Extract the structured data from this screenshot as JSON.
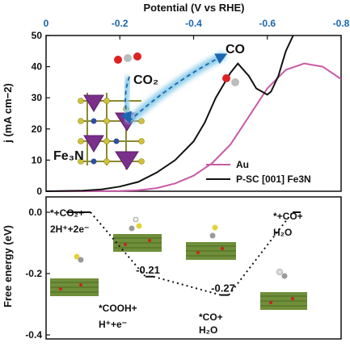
{
  "chart_data": [
    {
      "type": "line",
      "xlabel": "Potential (V vs RHE)",
      "ylabel": "j (mA cm−2)",
      "xlim": [
        0,
        -0.8
      ],
      "ylim": [
        0,
        50
      ],
      "x_ticks": [
        "0",
        "-0.2",
        "-0.4",
        "-0.6",
        "-0.8"
      ],
      "y_ticks": [
        "0",
        "10",
        "20",
        "30",
        "40",
        "50"
      ],
      "x_tick_values": [
        0,
        -0.2,
        -0.4,
        -0.6,
        -0.8
      ],
      "y_tick_values": [
        0,
        10,
        20,
        30,
        40,
        50
      ],
      "legend_position": "bottom-right",
      "series": [
        {
          "name": "Au",
          "color": "#c85aa6",
          "x": [
            0,
            -0.1,
            -0.2,
            -0.25,
            -0.3,
            -0.35,
            -0.4,
            -0.45,
            -0.5,
            -0.55,
            -0.6,
            -0.65,
            -0.7,
            -0.75,
            -0.8
          ],
          "y": [
            0,
            0,
            0.1,
            0.3,
            1,
            2.5,
            5,
            9,
            15,
            24,
            33,
            39,
            41,
            40,
            36
          ]
        },
        {
          "name": "P-SC [001] Fe3N",
          "color": "#111111",
          "x": [
            0,
            -0.1,
            -0.15,
            -0.2,
            -0.25,
            -0.3,
            -0.35,
            -0.4,
            -0.43,
            -0.46,
            -0.5,
            -0.52,
            -0.55,
            -0.57,
            -0.6,
            -0.61,
            -0.63,
            -0.65,
            -0.67
          ],
          "y": [
            0,
            0.2,
            0.6,
            1.5,
            3,
            6,
            10,
            16,
            22,
            30,
            38,
            41,
            37,
            33,
            31,
            32,
            37,
            45,
            52
          ]
        }
      ],
      "annotations": {
        "co2": "CO₂",
        "co": "CO",
        "material": "Fe₃N"
      }
    },
    {
      "type": "line",
      "xlabel": "",
      "ylabel": "Free energy (eV)",
      "ylim": [
        -0.4,
        0.05
      ],
      "y_ticks": [
        "0.0",
        "-0.2",
        "-0.4"
      ],
      "y_tick_values": [
        0,
        -0.2,
        -0.4
      ],
      "states": [
        {
          "label_lines": [
            "*+CO₂+",
            "2H⁺+2e⁻"
          ],
          "value": 0.0
        },
        {
          "label_lines": [
            "*COOH+",
            "H⁺+e⁻"
          ],
          "value": -0.21,
          "value_label": "-0.21"
        },
        {
          "label_lines": [
            "*CO+",
            "H₂O"
          ],
          "value": -0.27,
          "value_label": "-0.27"
        },
        {
          "label_lines": [
            "*+CO+",
            "H₂O"
          ],
          "value": 0.0
        }
      ]
    }
  ]
}
